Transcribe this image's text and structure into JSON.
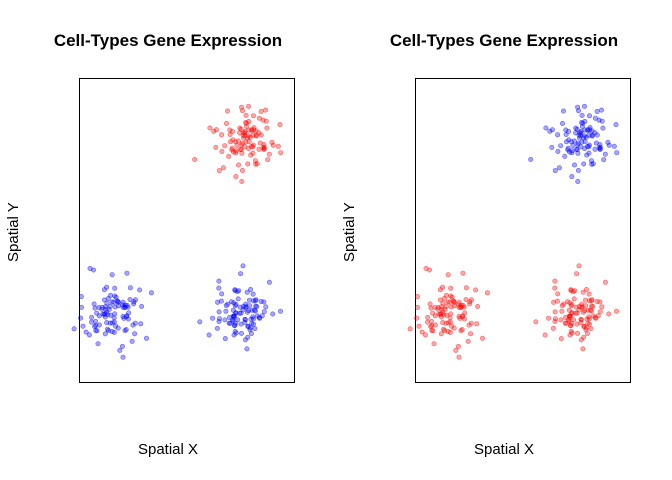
{
  "colors": {
    "red": "#ff0000",
    "blue": "#0000ff"
  },
  "chart_data": [
    {
      "type": "scatter",
      "title": "Cell-Types Gene Expression",
      "xlabel": "Spatial X",
      "ylabel": "Spatial Y",
      "grid": false,
      "series": [
        {
          "color": "#ff0000",
          "cluster_center": [
            0.78,
            0.8
          ],
          "cluster_sd": [
            0.08,
            0.055
          ],
          "n": 100
        },
        {
          "color": "#0000ff",
          "cluster_center": [
            0.13,
            0.22
          ],
          "cluster_sd": [
            0.075,
            0.055
          ],
          "n": 100
        },
        {
          "color": "#0000ff",
          "cluster_center": [
            0.78,
            0.22
          ],
          "cluster_sd": [
            0.075,
            0.055
          ],
          "n": 100
        }
      ]
    },
    {
      "type": "scatter",
      "title": "Cell-Types Gene Expression",
      "xlabel": "Spatial X",
      "ylabel": "Spatial Y",
      "grid": false,
      "series": [
        {
          "color": "#0000ff",
          "cluster_center": [
            0.78,
            0.8
          ],
          "cluster_sd": [
            0.08,
            0.055
          ],
          "n": 100
        },
        {
          "color": "#ff0000",
          "cluster_center": [
            0.13,
            0.22
          ],
          "cluster_sd": [
            0.075,
            0.055
          ],
          "n": 100
        },
        {
          "color": "#ff0000",
          "cluster_center": [
            0.78,
            0.22
          ],
          "cluster_sd": [
            0.075,
            0.055
          ],
          "n": 100
        }
      ]
    }
  ]
}
